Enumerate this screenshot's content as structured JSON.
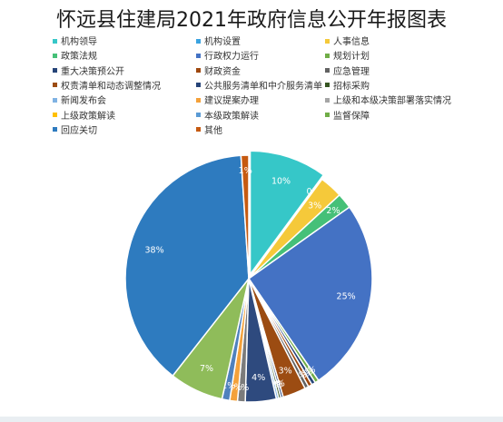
{
  "chart_data": {
    "type": "pie",
    "title": "怀远县住建局2021年政府信息公开年报图表",
    "legend_position": "top",
    "slices": [
      {
        "label": "机构领导",
        "value": 10,
        "display": "10%",
        "color": "#36c7c8"
      },
      {
        "label": "机构设置",
        "value": 0,
        "display": "0%",
        "color": "#3aa3e0"
      },
      {
        "label": "人事信息",
        "value": 3,
        "display": "3%",
        "color": "#f5c93a"
      },
      {
        "label": "政策法规",
        "value": 2,
        "display": "2%",
        "color": "#45c078"
      },
      {
        "label": "行政权力运行",
        "value": 25,
        "display": "25%",
        "color": "#4472c4"
      },
      {
        "label": "规划计划",
        "value": 0.5,
        "display": "0%",
        "color": "#70ad47"
      },
      {
        "label": "重大决策预公开",
        "value": 0.5,
        "display": "1%",
        "color": "#264478"
      },
      {
        "label": "财政资金",
        "value": 0.5,
        "display": "1%",
        "color": "#9e480e"
      },
      {
        "label": "应急管理",
        "value": 0.5,
        "display": "1%",
        "color": "#636363"
      },
      {
        "label": "权责清单和动态调整情况",
        "value": 3,
        "display": "3%",
        "color": "#9c4c12"
      },
      {
        "label": "公共服务清单和中介服务清单",
        "value": 0.3,
        "display": "0%",
        "color": "#264478"
      },
      {
        "label": "招标采购",
        "value": 0.3,
        "display": "0%",
        "color": "#375623"
      },
      {
        "label": "新闻发布会",
        "value": 0.3,
        "display": "0%",
        "color": "#7fb2e3"
      },
      {
        "label": "建议提案办理",
        "value": 4,
        "display": "4%",
        "color": "#2e4a7e"
      },
      {
        "label": "上级和本级决策部署落实情况",
        "value": 1,
        "display": "1%",
        "color": "#7b7b7b"
      },
      {
        "label": "上级政策解读",
        "value": 1,
        "display": "1%",
        "color": "#f4a13a"
      },
      {
        "label": "本级政策解读",
        "value": 1,
        "display": "1%",
        "color": "#4f81bd"
      },
      {
        "label": "监督保障",
        "value": 7,
        "display": "7%",
        "color": "#8fbc5a"
      },
      {
        "label": "回应关切",
        "value": 38,
        "display": "38%",
        "color": "#2e7bbf"
      },
      {
        "label": "其他",
        "value": 1,
        "display": "1%",
        "color": "#c65a11"
      }
    ]
  },
  "legend": [
    {
      "label": "机构领导",
      "color": "#36c7c8"
    },
    {
      "label": "机构设置",
      "color": "#3aa3e0"
    },
    {
      "label": "人事信息",
      "color": "#f5c93a"
    },
    {
      "label": "政策法规",
      "color": "#45c078"
    },
    {
      "label": "行政权力运行",
      "color": "#4472c4"
    },
    {
      "label": "规划计划",
      "color": "#70ad47"
    },
    {
      "label": "重大决策预公开",
      "color": "#264478"
    },
    {
      "label": "财政资金",
      "color": "#9e480e"
    },
    {
      "label": "应急管理",
      "color": "#636363"
    },
    {
      "label": "权责清单和动态调整情况",
      "color": "#9c4c12"
    },
    {
      "label": "公共服务清单和中介服务清单",
      "color": "#264478"
    },
    {
      "label": "招标采购",
      "color": "#375623"
    },
    {
      "label": "新闻发布会",
      "color": "#7fb2e3"
    },
    {
      "label": "建议提案办理",
      "color": "#f4a13a"
    },
    {
      "label": "上级和本级决策部署落实情况",
      "color": "#a5a5a5"
    },
    {
      "label": "上级政策解读",
      "color": "#ffc000"
    },
    {
      "label": "本级政策解读",
      "color": "#5b9bd5"
    },
    {
      "label": "监督保障",
      "color": "#70ad47"
    },
    {
      "label": "回应关切",
      "color": "#2e7bbf"
    },
    {
      "label": "其他",
      "color": "#c65a11"
    }
  ]
}
